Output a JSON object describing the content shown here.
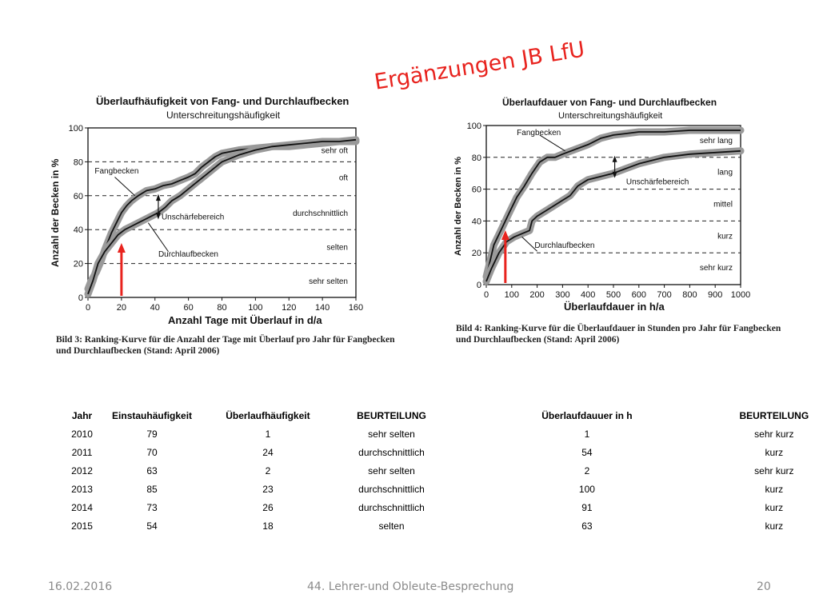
{
  "slide": {
    "title": "Ergänzungen JB LfU",
    "footer_date": "16.02.2016",
    "footer_center": "44. Lehrer-und Obleute-Besprechung",
    "footer_page": "20"
  },
  "captions": {
    "left_line1": "Bild 3: Ranking-Kurve für die Anzahl der Tage mit Überlauf pro Jahr für Fangbecken",
    "left_line2": "und Durchlaufbecken (Stand: April 2006)",
    "right_line1": "Bild 4: Ranking-Kurve für die Überlaufdauer in Stunden pro Jahr für Fangbecken",
    "right_line2": "und Durchlaufbecken (Stand: April 2006)"
  },
  "chart_data": [
    {
      "type": "line",
      "title": "Überlaufhäufigkeit  von Fang- und Durchlaufbecken",
      "subtitle": "Unterschreitungshäufigkeit",
      "xlabel": "Anzahl Tage mit Überlauf in d/a",
      "ylabel": "Anzahl der Becken in %",
      "xlim": [
        0,
        160
      ],
      "ylim": [
        0,
        100
      ],
      "xticks": [
        0,
        20,
        40,
        60,
        80,
        100,
        120,
        140,
        160
      ],
      "yticks": [
        0,
        20,
        40,
        60,
        80,
        100
      ],
      "class_lines": [
        20,
        40,
        60,
        80
      ],
      "classes": [
        {
          "label": "sehr oft",
          "y": 87
        },
        {
          "label": "oft",
          "y": 71
        },
        {
          "label": "durchschnittlich",
          "y": 50
        },
        {
          "label": "selten",
          "y": 30
        },
        {
          "label": "sehr selten",
          "y": 10
        }
      ],
      "series": [
        {
          "name": "Fangbecken",
          "x": [
            0,
            2,
            5,
            8,
            10,
            12,
            14,
            17,
            20,
            23,
            26,
            30,
            35,
            40,
            45,
            50,
            55,
            60,
            64,
            68,
            72,
            76,
            80,
            90,
            100,
            110,
            120,
            130,
            140,
            150,
            160
          ],
          "y": [
            5,
            10,
            15,
            22,
            28,
            33,
            38,
            44,
            50,
            54,
            57,
            60,
            63,
            64,
            66,
            67,
            69,
            71,
            73,
            77,
            80,
            83,
            85,
            87,
            88,
            89,
            89,
            90,
            91,
            92,
            92
          ]
        },
        {
          "name": "Durchlaufbecken",
          "x": [
            0,
            3,
            6,
            10,
            14,
            18,
            22,
            26,
            30,
            34,
            38,
            42,
            46,
            50,
            55,
            60,
            65,
            70,
            75,
            80,
            85,
            90,
            100,
            110,
            120,
            130,
            140,
            150,
            160
          ],
          "y": [
            2,
            10,
            20,
            27,
            32,
            37,
            40,
            42,
            44,
            46,
            48,
            50,
            53,
            57,
            60,
            64,
            68,
            72,
            76,
            80,
            82,
            84,
            87,
            89,
            90,
            91,
            92,
            92,
            93
          ]
        }
      ],
      "annotations": [
        "Fangbecken",
        "Durchlaufbecken",
        "Unschärfebereich"
      ],
      "marker_x": 20
    },
    {
      "type": "line",
      "title": "Überlaufdauer von Fang- und Durchlaufbecken",
      "subtitle": "Unterschreitungshäufigkeit",
      "xlabel": "Überlaufdauer in h/a",
      "ylabel": "Anzahl der Becken in %",
      "xlim": [
        0,
        1000
      ],
      "ylim": [
        0,
        100
      ],
      "xticks": [
        0,
        100,
        200,
        300,
        400,
        500,
        600,
        700,
        800,
        900,
        1000
      ],
      "yticks": [
        0,
        20,
        40,
        60,
        80,
        100
      ],
      "class_lines": [
        20,
        40,
        60,
        80
      ],
      "classes": [
        {
          "label": "sehr lang",
          "y": 91
        },
        {
          "label": "lang",
          "y": 71
        },
        {
          "label": "mittel",
          "y": 51
        },
        {
          "label": "kurz",
          "y": 31
        },
        {
          "label": "sehr kurz",
          "y": 11
        }
      ],
      "series": [
        {
          "name": "Fangbecken",
          "x": [
            0,
            15,
            30,
            60,
            90,
            120,
            150,
            180,
            210,
            240,
            270,
            300,
            350,
            400,
            450,
            500,
            550,
            600,
            700,
            800,
            900,
            1000
          ],
          "y": [
            5,
            15,
            25,
            35,
            45,
            55,
            62,
            70,
            77,
            80,
            80,
            82,
            85,
            88,
            92,
            94,
            95,
            96,
            96,
            97,
            97,
            97
          ]
        },
        {
          "name": "Durchlaufbecken",
          "x": [
            0,
            20,
            50,
            80,
            110,
            140,
            170,
            180,
            200,
            230,
            260,
            300,
            330,
            360,
            380,
            400,
            450,
            500,
            550,
            600,
            650,
            700,
            800,
            900,
            1000
          ],
          "y": [
            2,
            10,
            20,
            27,
            30,
            32,
            34,
            40,
            43,
            46,
            49,
            53,
            56,
            62,
            64,
            66,
            68,
            70,
            73,
            76,
            78,
            80,
            82,
            83,
            84
          ]
        }
      ],
      "annotations": [
        "Fangbecken",
        "Durchlaufbecken",
        "Unschärfebereich"
      ],
      "marker_x": 75
    }
  ],
  "table": {
    "headers": [
      "Jahr",
      "Einstauhäufigkeit",
      "Überlaufhäufigkeit",
      "BEURTEILUNG",
      "Überlaufdauuer in h",
      "BEURTEILUNG"
    ],
    "rows": [
      [
        "2010",
        "79",
        "1",
        "sehr selten",
        "1",
        "sehr kurz"
      ],
      [
        "2011",
        "70",
        "24",
        "durchschnittlich",
        "54",
        "kurz"
      ],
      [
        "2012",
        "63",
        "2",
        "sehr selten",
        "2",
        "sehr kurz"
      ],
      [
        "2013",
        "85",
        "23",
        "durchschnittlich",
        "100",
        "kurz"
      ],
      [
        "2014",
        "73",
        "26",
        "durchschnittlich",
        "91",
        "kurz"
      ],
      [
        "2015",
        "54",
        "18",
        "selten",
        "63",
        "kurz"
      ]
    ]
  },
  "colors": {
    "title": "#e8231e",
    "marker_arrow": "#e8231e",
    "band": "#9a9a9a",
    "curve": "#111111",
    "footer": "#8a8a8a"
  }
}
